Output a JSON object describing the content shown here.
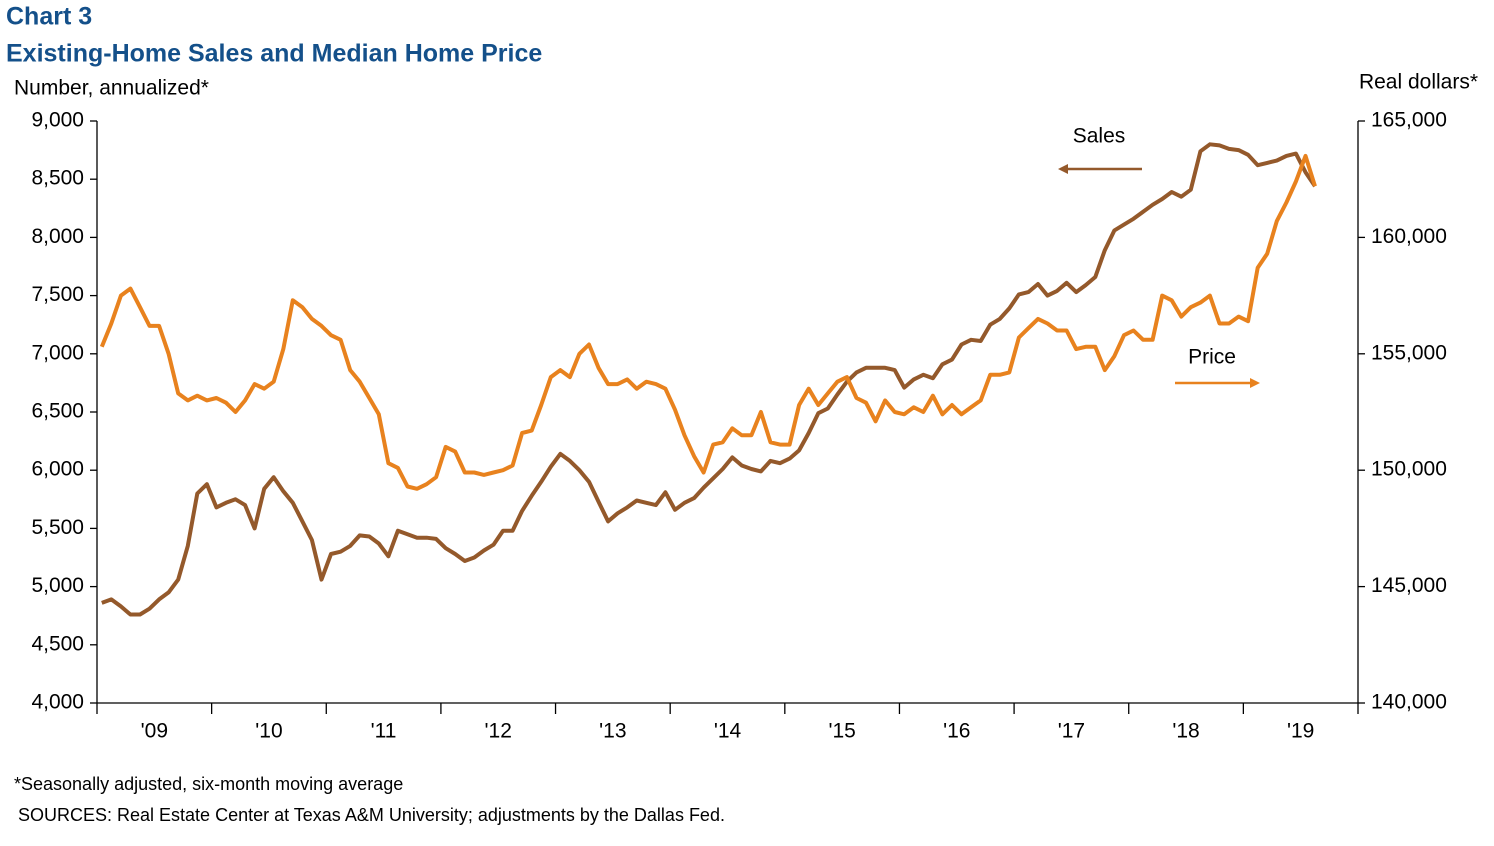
{
  "chart_data": {
    "type": "line",
    "title": "Chart 3",
    "subtitle": "Existing-Home Sales and Median Home Price",
    "y_label": "Number, annualized*",
    "y2_label": "Real dollars*",
    "footnote": "*Seasonally adjusted, six-month moving average",
    "source": "SOURCES: Real Estate Center at Texas A&M University; adjustments by the Dallas Fed.",
    "annotations": [
      "Sales",
      "Price"
    ],
    "categories": [
      null,
      null,
      null,
      null,
      null,
      null,
      "'09",
      null,
      null,
      null,
      null,
      null,
      null,
      null,
      null,
      null,
      null,
      null,
      "'10",
      null,
      null,
      null,
      null,
      null,
      null,
      null,
      null,
      null,
      null,
      null,
      "'11",
      null,
      null,
      null,
      null,
      null,
      null,
      null,
      null,
      null,
      null,
      null,
      "'12",
      null,
      null,
      null,
      null,
      null,
      null,
      null,
      null,
      null,
      null,
      null,
      "'13",
      null,
      null,
      null,
      null,
      null,
      null,
      null,
      null,
      null,
      null,
      null,
      "'14",
      null,
      null,
      null,
      null,
      null,
      null,
      null,
      null,
      null,
      null,
      null,
      "'15",
      null,
      null,
      null,
      null,
      null,
      null,
      null,
      null,
      null,
      null,
      null,
      "'16",
      null,
      null,
      null,
      null,
      null,
      null,
      null,
      null,
      null,
      null,
      null,
      "'17",
      null,
      null,
      null,
      null,
      null,
      null,
      null,
      null,
      null,
      null,
      null,
      "'18",
      null,
      null,
      null,
      null,
      null,
      null,
      null,
      null,
      null,
      null,
      null,
      "'19",
      null,
      null,
      null,
      null,
      null
    ],
    "series": [
      {
        "name": "Sales",
        "color": "#94592b",
        "values": [
          4860,
          4890,
          4830,
          4760,
          4760,
          4810,
          4890,
          4950,
          5060,
          5350,
          5800,
          5880,
          5680,
          5720,
          5750,
          5700,
          5500,
          5840,
          5940,
          5820,
          5720,
          5560,
          5400,
          5060,
          5280,
          5300,
          5350,
          5440,
          5430,
          5370,
          5260,
          5480,
          5450,
          5420,
          5420,
          5410,
          5330,
          5280,
          5220,
          5250,
          5310,
          5360,
          5480,
          5480,
          5650,
          5780,
          5900,
          6030,
          6140,
          6080,
          6000,
          5900,
          5730,
          5560,
          5630,
          5680,
          5740,
          5720,
          5700,
          5810,
          5660,
          5720,
          5760,
          5850,
          5930,
          6010,
          6110,
          6040,
          6010,
          5990,
          6080,
          6060,
          6100,
          6170,
          6320,
          6490,
          6530,
          6650,
          6760,
          6840,
          6880,
          6880,
          6880,
          6860,
          6710,
          6780,
          6820,
          6790,
          6910,
          6950,
          7080,
          7120,
          7110,
          7250,
          7300,
          7390,
          7510,
          7530,
          7600,
          7500,
          7540,
          7610,
          7530,
          7590,
          7660,
          7890,
          8060,
          8110,
          8160,
          8220,
          8280,
          8330,
          8390,
          8350,
          8410,
          8740,
          8800,
          8790,
          8760,
          8750,
          8710,
          8620,
          8640,
          8660,
          8700,
          8720,
          8560,
          8440,
          null,
          null,
          null,
          null
        ]
      },
      {
        "name": "Price",
        "color": "#e8821e",
        "axis": "y2",
        "values": [
          155300,
          156300,
          157500,
          157800,
          157000,
          156200,
          156200,
          155000,
          153300,
          153000,
          153200,
          153000,
          153100,
          152900,
          152500,
          153000,
          153700,
          153500,
          153800,
          155200,
          157300,
          157000,
          156500,
          156200,
          155800,
          155600,
          154300,
          153800,
          153100,
          152400,
          150300,
          150100,
          149300,
          149200,
          149400,
          149700,
          151000,
          150800,
          149900,
          149900,
          149800,
          149900,
          150000,
          150200,
          151600,
          151700,
          152800,
          154000,
          154300,
          154000,
          155000,
          155400,
          154400,
          153700,
          153700,
          153900,
          153500,
          153800,
          153700,
          153500,
          152600,
          151500,
          150600,
          149900,
          151100,
          151200,
          151800,
          151500,
          151500,
          152500,
          151200,
          151100,
          151100,
          152800,
          153500,
          152800,
          153300,
          153800,
          154000,
          153100,
          152900,
          152100,
          153000,
          152500,
          152400,
          152700,
          152500,
          153200,
          152400,
          152800,
          152400,
          152700,
          153000,
          154100,
          154100,
          154200,
          155700,
          156100,
          156500,
          156300,
          156000,
          156000,
          155200,
          155300,
          155300,
          154300,
          154900,
          155800,
          156000,
          155600,
          155600,
          157500,
          157300,
          156600,
          157000,
          157200,
          157500,
          156300,
          156300,
          156600,
          156400,
          158700,
          159300,
          160700,
          161500,
          162400,
          163500,
          162200,
          null,
          null,
          null,
          null
        ]
      }
    ],
    "ylim": [
      4000,
      9000
    ],
    "yticks": [
      {
        "value": 4000,
        "label": "4,000"
      },
      {
        "value": 4500,
        "label": "4,500"
      },
      {
        "value": 5000,
        "label": "5,000"
      },
      {
        "value": 5500,
        "label": "5,500"
      },
      {
        "value": 6000,
        "label": "6,000"
      },
      {
        "value": 6500,
        "label": "6,500"
      },
      {
        "value": 7000,
        "label": "7,000"
      },
      {
        "value": 7500,
        "label": "7,500"
      },
      {
        "value": 8000,
        "label": "8,000"
      },
      {
        "value": 8500,
        "label": "8,500"
      },
      {
        "value": 9000,
        "label": "9,000"
      }
    ],
    "y2lim": [
      140000,
      165000
    ],
    "y2ticks": [
      {
        "value": 140000,
        "label": "140,000"
      },
      {
        "value": 145000,
        "label": "145,000"
      },
      {
        "value": 150000,
        "label": "150,000"
      },
      {
        "value": 155000,
        "label": "155,000"
      },
      {
        "value": 160000,
        "label": "160,000"
      },
      {
        "value": 165000,
        "label": "165,000"
      }
    ],
    "grid": false
  }
}
